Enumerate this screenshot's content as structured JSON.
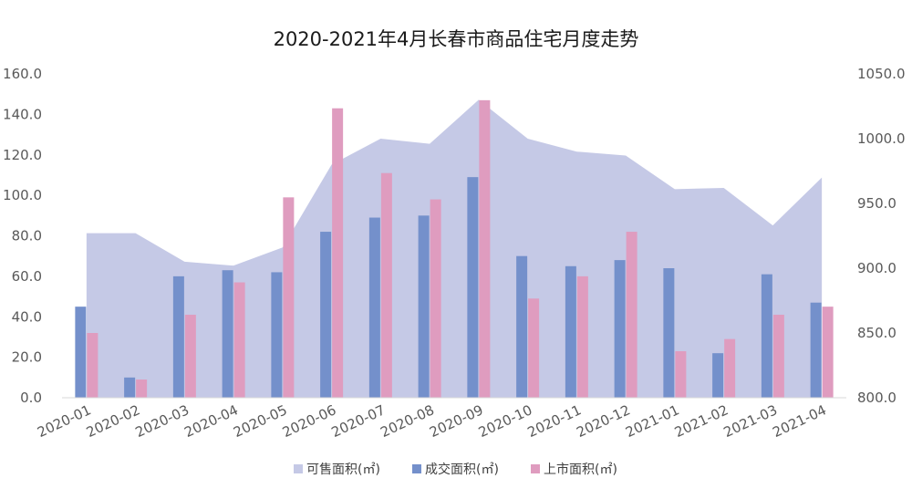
{
  "chart_data": {
    "type": "bar",
    "title": "2020-2021年4月长春市商品住宅月度走势",
    "categories": [
      "2020-01",
      "2020-02",
      "2020-03",
      "2020-04",
      "2020-05",
      "2020-06",
      "2020-07",
      "2020-08",
      "2020-09",
      "2020-10",
      "2020-11",
      "2020-12",
      "2021-01",
      "2021-02",
      "2021-03",
      "2021-04"
    ],
    "left_axis": {
      "ylim": [
        0,
        160
      ],
      "ticks": [
        "0.0",
        "20.0",
        "40.0",
        "60.0",
        "80.0",
        "100.0",
        "120.0",
        "140.0",
        "160.0"
      ]
    },
    "right_axis": {
      "ylim": [
        800,
        1050
      ],
      "ticks": [
        "800.0",
        "850.0",
        "900.0",
        "950.0",
        "1000.0",
        "1050.0"
      ]
    },
    "series": [
      {
        "name": "可售面积(㎡)",
        "kind": "area",
        "axis": "right",
        "color": "#c5c9e6",
        "values": [
          927,
          927,
          905,
          902,
          916,
          980,
          1000,
          996,
          1030,
          1000,
          990,
          987,
          961,
          962,
          933,
          970
        ]
      },
      {
        "name": "成交面积(㎡)",
        "kind": "bar",
        "axis": "left",
        "color": "#7490cb",
        "values": [
          45,
          10,
          60,
          63,
          62,
          82,
          89,
          90,
          109,
          70,
          65,
          68,
          64,
          22,
          61,
          47
        ]
      },
      {
        "name": "上市面积(㎡)",
        "kind": "bar",
        "axis": "left",
        "color": "#df9cbf",
        "values": [
          32,
          9,
          41,
          57,
          99,
          143,
          111,
          98,
          147,
          49,
          60,
          82,
          23,
          29,
          41,
          45
        ]
      }
    ]
  }
}
